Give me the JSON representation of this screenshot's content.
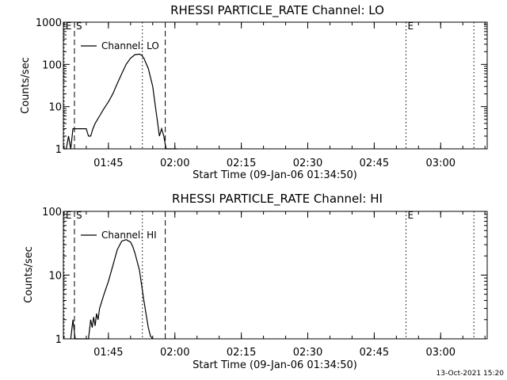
{
  "footer_text": "13-Oct-2021 15:20",
  "chart_data": [
    {
      "type": "line",
      "title": "RHESSI PARTICLE_RATE Channel: LO",
      "xlabel": "Start Time (09-Jan-06 01:34:50)",
      "ylabel": "Counts/sec",
      "yscale": "log",
      "ylim": [
        1,
        1000
      ],
      "xlim": [
        "01:34:50",
        "03:10:30"
      ],
      "x_ticks": [
        "01:45",
        "02:00",
        "02:15",
        "02:30",
        "02:45",
        "03:00"
      ],
      "y_ticks": [
        "1",
        "10",
        "100",
        "1000"
      ],
      "legend": "top-left",
      "markers": [
        {
          "label": "E",
          "time": "01:35:00",
          "style": "dotted"
        },
        {
          "label": "S",
          "time": "01:37:20",
          "style": "dashed"
        },
        {
          "time": "01:52:40",
          "style": "dotted"
        },
        {
          "time": "01:57:50",
          "style": "dashed"
        },
        {
          "label": "E",
          "time": "02:52:10",
          "style": "dotted"
        },
        {
          "time": "03:07:30",
          "style": "dotted"
        }
      ],
      "series": [
        {
          "name": "Channel: LO",
          "x": [
            "01:35:00",
            "01:35:30",
            "01:36:00",
            "01:36:30",
            "01:37:00",
            "01:37:30",
            "01:38:00",
            "01:39:00",
            "01:40:00",
            "01:40:30",
            "01:41:00",
            "01:41:30",
            "01:42:00",
            "01:43:00",
            "01:44:00",
            "01:45:00",
            "01:46:00",
            "01:47:00",
            "01:48:00",
            "01:49:00",
            "01:50:00",
            "01:51:00",
            "01:52:00",
            "01:52:30",
            "01:53:00",
            "01:54:00",
            "01:55:00",
            "01:55:30",
            "01:56:00",
            "01:56:30",
            "01:57:00",
            "01:57:30",
            "01:58:00",
            "01:58:30",
            "01:59:00",
            "02:00:00",
            "02:00:30"
          ],
          "values": [
            1,
            1,
            2,
            1,
            3,
            3,
            3,
            3,
            3,
            2,
            2,
            3,
            4,
            6,
            9,
            13,
            20,
            35,
            60,
            100,
            140,
            170,
            175,
            165,
            140,
            80,
            30,
            12,
            5,
            2,
            3,
            2,
            1,
            1,
            1,
            1,
            1
          ]
        }
      ]
    },
    {
      "type": "line",
      "title": "RHESSI PARTICLE_RATE Channel: HI",
      "xlabel": "Start Time (09-Jan-06 01:34:50)",
      "ylabel": "Counts/sec",
      "yscale": "log",
      "ylim": [
        1,
        100
      ],
      "xlim": [
        "01:34:50",
        "03:10:30"
      ],
      "x_ticks": [
        "01:45",
        "02:00",
        "02:15",
        "02:30",
        "02:45",
        "03:00"
      ],
      "y_ticks": [
        "1",
        "10",
        "100"
      ],
      "legend": "top-left",
      "markers": [
        {
          "label": "E",
          "time": "01:35:00",
          "style": "dotted"
        },
        {
          "label": "S",
          "time": "01:37:20",
          "style": "dashed"
        },
        {
          "time": "01:52:40",
          "style": "dotted"
        },
        {
          "time": "01:57:50",
          "style": "dashed"
        },
        {
          "label": "E",
          "time": "02:52:10",
          "style": "dotted"
        },
        {
          "time": "03:07:30",
          "style": "dotted"
        }
      ],
      "series": [
        {
          "name": "Channel: HI",
          "x": [
            "01:36:30",
            "01:37:00",
            "01:37:30",
            "01:38:00",
            "01:39:00",
            "01:40:00",
            "01:40:30",
            "01:41:00",
            "01:41:20",
            "01:41:40",
            "01:42:00",
            "01:42:20",
            "01:42:40",
            "01:43:00",
            "01:44:00",
            "01:45:00",
            "01:46:00",
            "01:47:00",
            "01:48:00",
            "01:49:00",
            "01:50:00",
            "01:50:30",
            "01:51:00",
            "01:52:00",
            "01:53:00",
            "01:54:00",
            "01:54:30",
            "01:55:00"
          ],
          "values": [
            1,
            2,
            1,
            1,
            1,
            1,
            1,
            2,
            1.5,
            2.2,
            1.6,
            2.5,
            2,
            3,
            5,
            8,
            14,
            25,
            34,
            36,
            33,
            28,
            22,
            12,
            4,
            1.5,
            1.1,
            1
          ]
        }
      ]
    }
  ]
}
